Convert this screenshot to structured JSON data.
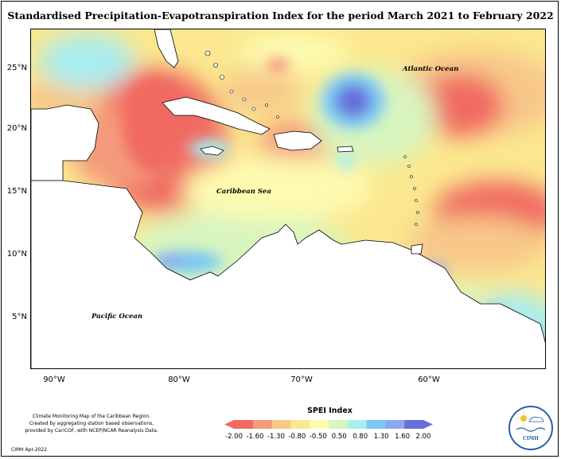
{
  "title": "Standardised Precipitation-Evapotranspiration Index for the period March 2021 to February 2022",
  "map": {
    "lat_ticks": [
      "25°N",
      "20°N",
      "15°N",
      "10°N",
      "5°N"
    ],
    "lon_ticks": [
      "90°W",
      "80°W",
      "70°W",
      "60°W"
    ],
    "labels": {
      "atlantic": "Atlantic Ocean",
      "caribbean": "Caribbean Sea",
      "pacific": "Pacific Ocean"
    },
    "extent": {
      "lon_min": -92,
      "lon_max": -50,
      "lat_min": 1,
      "lat_max": 28
    }
  },
  "legend": {
    "title": "SPEI Index",
    "labels": [
      "-2.00",
      "-1.60",
      "-1.30",
      "-0.80",
      "-0.50",
      "0.50",
      "0.80",
      "1.30",
      "1.60",
      "2.00"
    ],
    "colors": [
      "#f06a62",
      "#f49a7c",
      "#f8c88a",
      "#fbe88e",
      "#fdfbb0",
      "#d8f5bf",
      "#a9edef",
      "#7cc8f5",
      "#8ea8ee",
      "#6670d8"
    ]
  },
  "credits": {
    "lines": [
      "Climate Monitoring Map of the Caribbean Region.",
      "Created by aggregating station based observations,",
      "provided by CariCOF, with NCEP/NCAR Reanalysis Data."
    ],
    "agency": "CIMH Apr-2022"
  },
  "logo": {
    "text": "CIMH"
  }
}
